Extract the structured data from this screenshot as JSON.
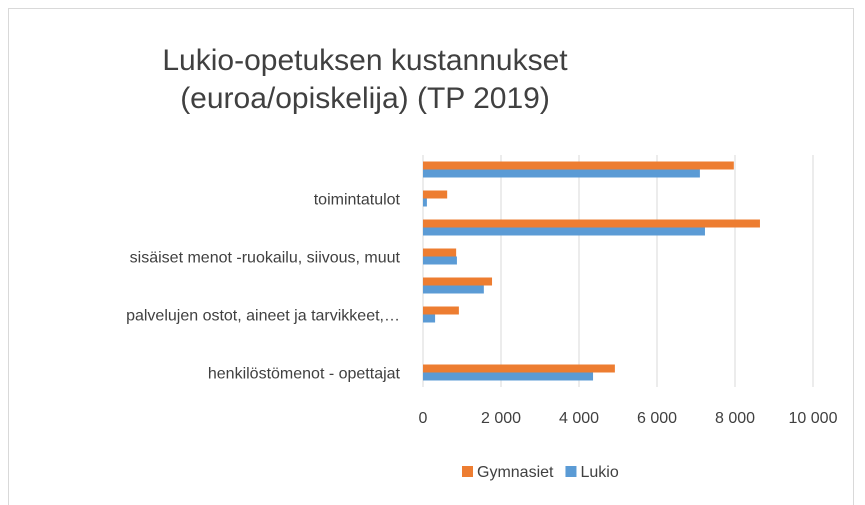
{
  "chart_data": {
    "type": "bar",
    "orientation": "horizontal",
    "title": "Lukio-opetuksen kustannukset (euroa/opiskelija) (TP 2019)",
    "categories": [
      "henkilöstömenot  - opettajat",
      null,
      "palvelujen ostot, aineet ja tarvikkeet,…",
      null,
      "sisäiset menot -ruokailu, siivous, muut",
      null,
      "toimintatulot",
      null
    ],
    "series": [
      {
        "name": "Gymnasiet",
        "color": "#ED7D31",
        "values": [
          4920,
          0,
          920,
          1770,
          850,
          8640,
          620,
          7970
        ]
      },
      {
        "name": "Lukio",
        "color": "#5B9BD5",
        "values": [
          4360,
          0,
          310,
          1560,
          870,
          7230,
          100,
          7100
        ]
      }
    ],
    "xlim": [
      0,
      10000
    ],
    "xticks": [
      0,
      {
        "value": 2000,
        "label": "2 000"
      },
      {
        "value": 4000,
        "label": "4 000"
      },
      {
        "value": 6000,
        "label": "6 000"
      },
      {
        "value": 8000,
        "label": "8 000"
      },
      {
        "value": 10000,
        "label": "10 000"
      }
    ],
    "grid": true,
    "legend": "bottom"
  }
}
